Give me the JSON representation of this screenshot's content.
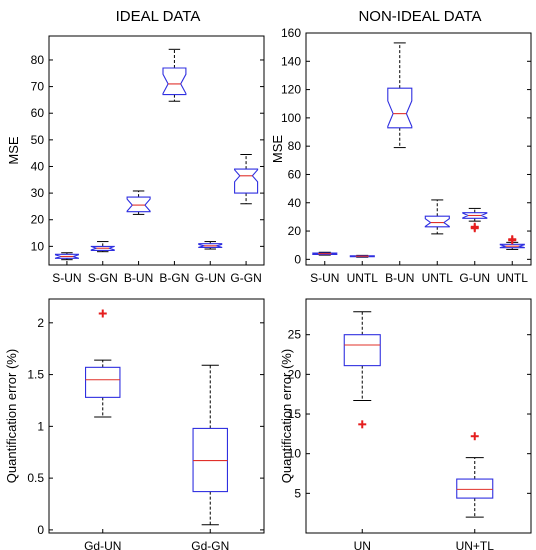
{
  "colors": {
    "box": "#2f2fe0",
    "median": "#e0302a",
    "outlier": "#e51e1e",
    "whisker": "#000000",
    "axis": "#000000"
  },
  "chart_data": [
    {
      "type": "box",
      "title": "IDEAL DATA",
      "ylabel": "MSE",
      "ylim": [
        3,
        89
      ],
      "yticks": [
        10,
        20,
        30,
        40,
        50,
        60,
        70,
        80
      ],
      "notched": true,
      "categories": [
        "S-UN",
        "S-GN",
        "B-UN",
        "B-GN",
        "G-UN",
        "G-GN"
      ],
      "boxes": [
        {
          "whislo": 5.0,
          "q1": 5.5,
          "med": 6.2,
          "q3": 7.0,
          "whishi": 7.6,
          "outliers": []
        },
        {
          "whislo": 8.0,
          "q1": 8.5,
          "med": 9.3,
          "q3": 10.0,
          "whishi": 11.8,
          "outliers": []
        },
        {
          "whislo": 22.0,
          "q1": 23.0,
          "med": 25.5,
          "q3": 28.5,
          "whishi": 30.8,
          "outliers": []
        },
        {
          "whislo": 64.5,
          "q1": 67.0,
          "med": 71.0,
          "q3": 77.0,
          "whishi": 84.0,
          "outliers": []
        },
        {
          "whislo": 9.0,
          "q1": 9.6,
          "med": 10.2,
          "q3": 11.0,
          "whishi": 11.8,
          "outliers": []
        },
        {
          "whislo": 26.0,
          "q1": 30.0,
          "med": 36.5,
          "q3": 39.0,
          "whishi": 44.5,
          "outliers": []
        }
      ]
    },
    {
      "type": "box",
      "title": "NON-IDEAL DATA",
      "ylabel": "MSE",
      "ylim": [
        -4,
        160
      ],
      "yticks": [
        0,
        20,
        40,
        60,
        80,
        100,
        120,
        140,
        160
      ],
      "notched": true,
      "categories": [
        "S-UN",
        "UNTL",
        "B-UN",
        "UNTL",
        "G-UN",
        "UNTL"
      ],
      "boxes": [
        {
          "whislo": 3.0,
          "q1": 3.5,
          "med": 4.0,
          "q3": 4.5,
          "whishi": 5.0,
          "outliers": []
        },
        {
          "whislo": 1.5,
          "q1": 1.9,
          "med": 2.2,
          "q3": 2.5,
          "whishi": 2.8,
          "outliers": []
        },
        {
          "whislo": 79.0,
          "q1": 93.0,
          "med": 103.0,
          "q3": 121.0,
          "whishi": 153.0,
          "outliers": []
        },
        {
          "whislo": 18.0,
          "q1": 23.0,
          "med": 26.0,
          "q3": 30.5,
          "whishi": 42.0,
          "outliers": []
        },
        {
          "whislo": 27.0,
          "q1": 29.0,
          "med": 31.0,
          "q3": 33.0,
          "whishi": 36.0,
          "outliers": [
            23.0,
            22.0
          ]
        },
        {
          "whislo": 7.0,
          "q1": 8.2,
          "med": 9.3,
          "q3": 10.6,
          "whishi": 12.0,
          "outliers": [
            13.5,
            14.2
          ]
        }
      ]
    },
    {
      "type": "box",
      "title": "",
      "ylabel": "Quantification error (%)",
      "ylim": [
        -0.03,
        2.23
      ],
      "yticks": [
        0,
        0.5,
        1,
        1.5,
        2
      ],
      "notched": false,
      "categories": [
        "Gd-UN",
        "Gd-GN"
      ],
      "boxes": [
        {
          "whislo": 1.09,
          "q1": 1.28,
          "med": 1.45,
          "q3": 1.57,
          "whishi": 1.64,
          "outliers": [
            2.09
          ]
        },
        {
          "whislo": 0.05,
          "q1": 0.37,
          "med": 0.67,
          "q3": 0.98,
          "whishi": 1.59,
          "outliers": []
        }
      ]
    },
    {
      "type": "box",
      "title": "",
      "ylabel": "Quantification error (%)",
      "ylim": [
        0,
        29.5
      ],
      "yticks": [
        5,
        10,
        15,
        20,
        25
      ],
      "notched": false,
      "categories": [
        "UN",
        "UN+TL"
      ],
      "boxes": [
        {
          "whislo": 16.7,
          "q1": 21.1,
          "med": 23.7,
          "q3": 25.0,
          "whishi": 27.9,
          "outliers": [
            13.7
          ]
        },
        {
          "whislo": 2.0,
          "q1": 4.4,
          "med": 5.5,
          "q3": 6.8,
          "whishi": 9.5,
          "outliers": [
            12.2
          ]
        }
      ]
    }
  ]
}
